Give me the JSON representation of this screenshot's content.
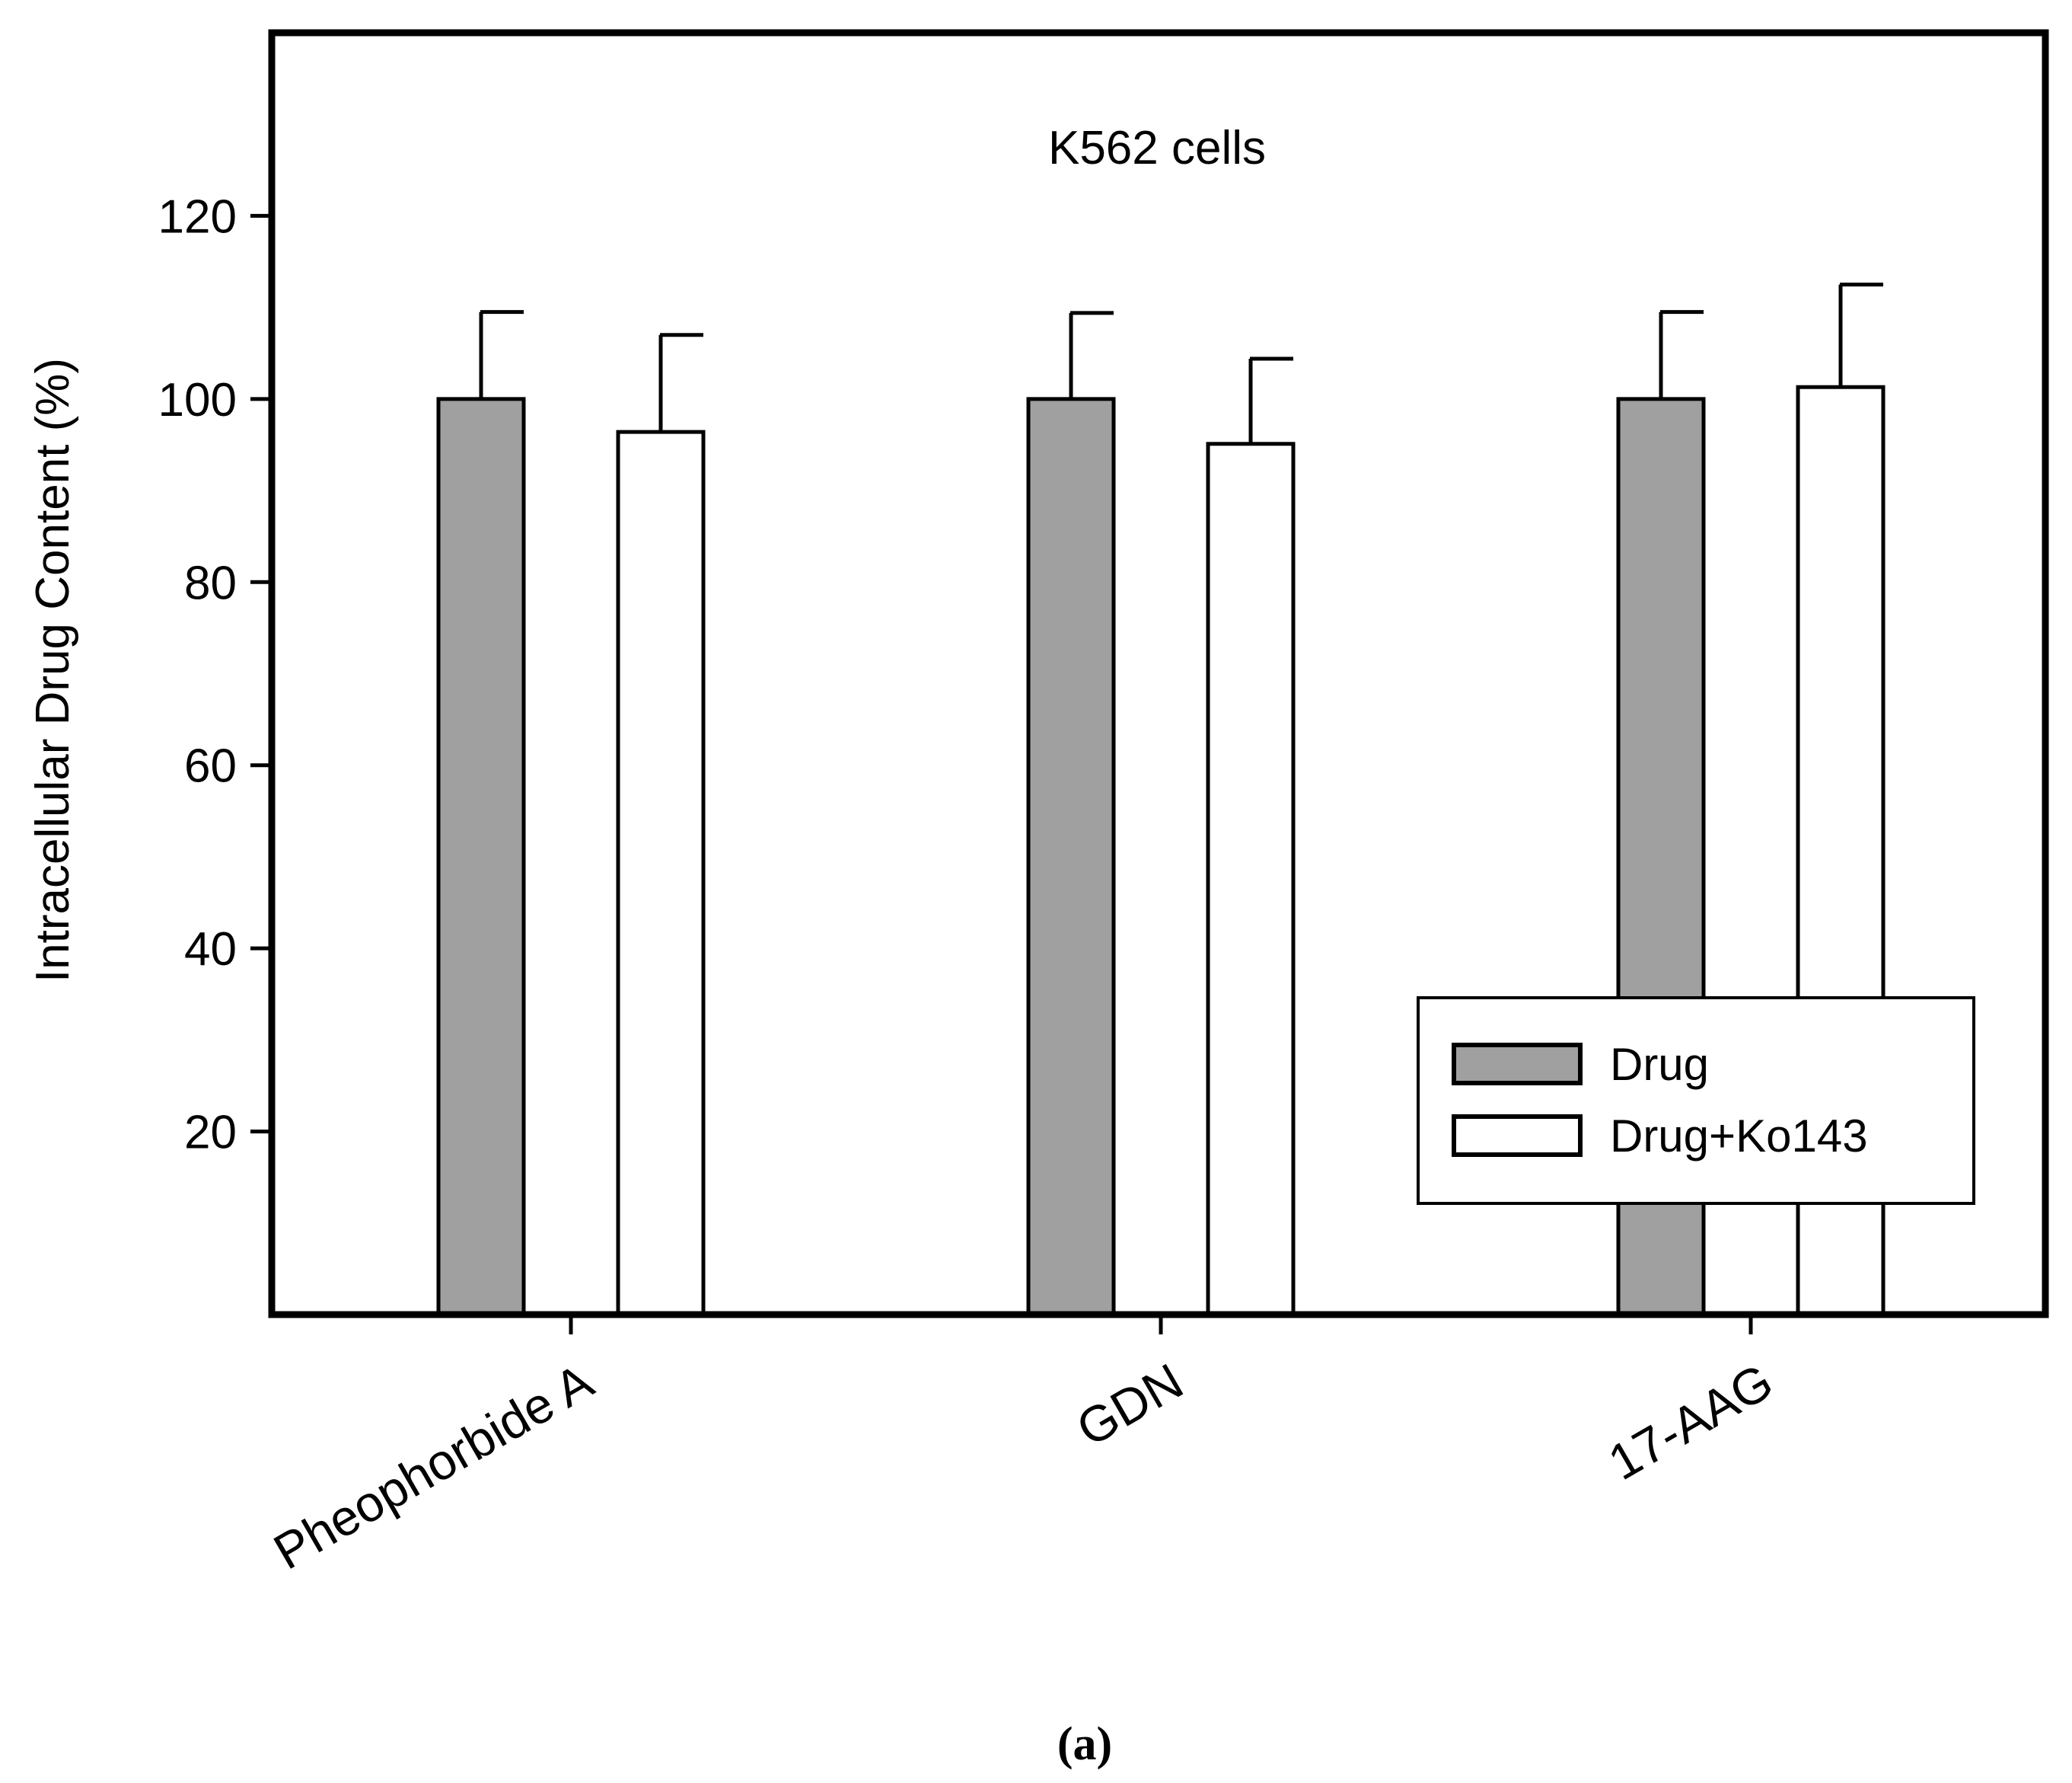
{
  "chart_data": {
    "type": "bar",
    "title": "K562 cells",
    "xlabel": "",
    "ylabel": "Intracellular Drug Content (%)",
    "ylim": [
      0,
      140
    ],
    "yticks": [
      20,
      40,
      60,
      80,
      100,
      120
    ],
    "categories": [
      "Pheophorbide A",
      "GDN",
      "17-AAG"
    ],
    "series": [
      {
        "name": "Drug",
        "values": [
          100,
          100,
          100
        ],
        "errors": [
          9.5,
          9.4,
          9.5
        ],
        "color": "#a0a0a0"
      },
      {
        "name": "Drug+Ko143",
        "values": [
          96.4,
          95.1,
          101.3
        ],
        "errors": [
          10.6,
          9.3,
          11.2
        ],
        "color": "#ffffff"
      }
    ],
    "legend": {
      "placement": "bottom-right"
    },
    "grid": false
  },
  "panel_label": "(a)"
}
